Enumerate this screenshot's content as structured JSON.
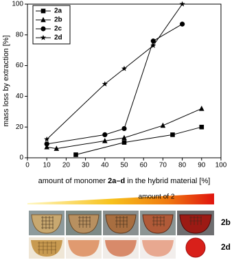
{
  "chart_data": {
    "type": "line",
    "xlabel_parts": [
      "amount of monomer ",
      "2a–d",
      " in the hybrid material [%]"
    ],
    "ylabel": "mass loss by extraction [%]",
    "xlim": [
      0,
      100
    ],
    "xticks": [
      0,
      10,
      20,
      30,
      40,
      50,
      60,
      70,
      80,
      90,
      100
    ],
    "ylim": [
      0,
      100
    ],
    "yticks": [
      0,
      20,
      40,
      60,
      80,
      100
    ],
    "legend": "upper left",
    "series": [
      {
        "name": "2a",
        "color": "#000000",
        "marker": "square",
        "x": [
          25,
          50,
          75,
          90
        ],
        "values": [
          2,
          10,
          15,
          20
        ]
      },
      {
        "name": "2b",
        "color": "#000000",
        "marker": "triangle",
        "x": [
          10,
          15,
          40,
          50,
          70,
          90
        ],
        "values": [
          7,
          6,
          11,
          13,
          21,
          32
        ]
      },
      {
        "name": "2c",
        "color": "#000000",
        "marker": "circle",
        "x": [
          10,
          40,
          50,
          65,
          80
        ],
        "values": [
          9,
          15,
          19,
          76,
          87
        ]
      },
      {
        "name": "2d",
        "color": "#000000",
        "marker": "star",
        "x": [
          10,
          40,
          50,
          65,
          80
        ],
        "values": [
          12,
          48,
          58,
          73,
          100
        ]
      }
    ]
  },
  "figure": {
    "gradient_label": "amount of 2",
    "row_labels": [
      "2b",
      "2d"
    ]
  }
}
